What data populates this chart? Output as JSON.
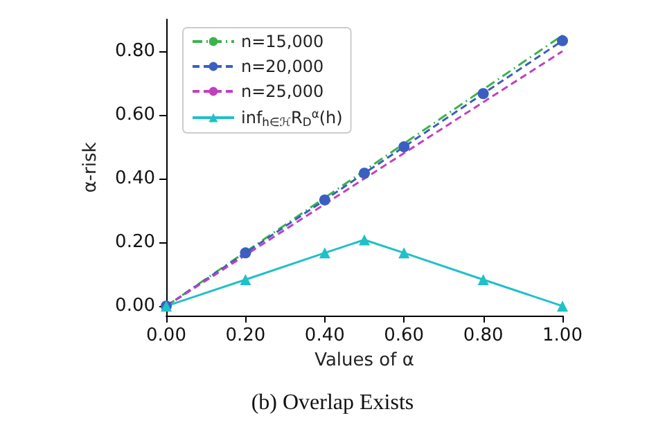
{
  "chart_data": {
    "type": "line",
    "title": "(b) Overlap Exists",
    "xlabel": "Values of α",
    "ylabel": "α-risk",
    "x": [
      0,
      0.2,
      0.4,
      0.5,
      0.6,
      0.8,
      1.0
    ],
    "series": [
      {
        "name": "n=15,000",
        "color": "#3cb34a",
        "values": [
          0,
          0.17,
          0.34,
          0.425,
          0.51,
          0.68,
          0.85
        ],
        "line_style": "dashdot",
        "marker": "none"
      },
      {
        "name": "n=20,000",
        "color": "#3a5fc0",
        "values": [
          0,
          0.167,
          0.333,
          0.417,
          0.5,
          0.667,
          0.833
        ],
        "line_style": "dashed",
        "marker": "circle"
      },
      {
        "name": "n=25,000",
        "color": "#c040c0",
        "values": [
          0,
          0.16,
          0.32,
          0.4,
          0.48,
          0.64,
          0.8
        ],
        "line_style": "dashed",
        "marker": "none"
      },
      {
        "name": "inf$_{h∈ℋ}$R$_{D}$$^{α}$(h)",
        "color": "#20c0c8",
        "values": [
          0,
          0.083,
          0.167,
          0.208,
          0.167,
          0.083,
          0
        ],
        "line_style": "solid",
        "marker": "triangle"
      }
    ],
    "xlim": [
      0,
      1
    ],
    "xticks": [
      {
        "value": 0,
        "label": "0.00"
      },
      {
        "value": 0.2,
        "label": "0.20"
      },
      {
        "value": 0.4,
        "label": "0.40"
      },
      {
        "value": 0.6,
        "label": "0.60"
      },
      {
        "value": 0.8,
        "label": "0.80"
      },
      {
        "value": 1,
        "label": "1.00"
      }
    ],
    "ylim": [
      -0.03,
      0.9
    ],
    "yticks": [
      {
        "value": 0,
        "label": "0.00"
      },
      {
        "value": 0.2,
        "label": "0.20"
      },
      {
        "value": 0.4,
        "label": "0.40"
      },
      {
        "value": 0.6,
        "label": "0.60"
      },
      {
        "value": 0.8,
        "label": "0.80"
      }
    ],
    "grid": false,
    "legend": "top left"
  }
}
